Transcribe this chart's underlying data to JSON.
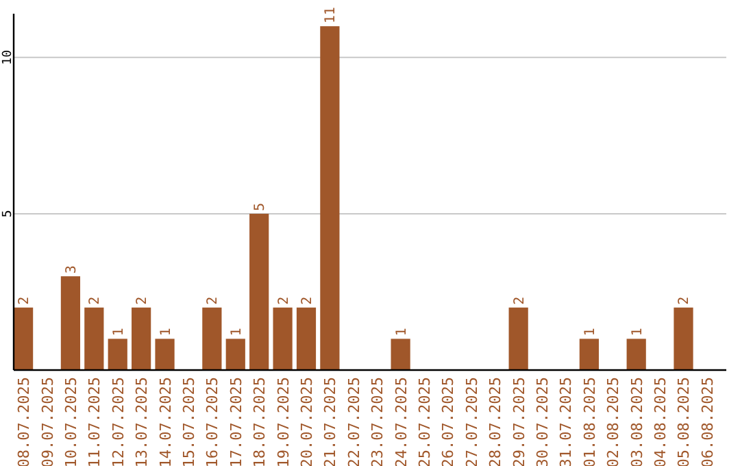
{
  "chart_data": {
    "type": "bar",
    "categories": [
      "08.07.2025",
      "09.07.2025",
      "10.07.2025",
      "11.07.2025",
      "12.07.2025",
      "13.07.2025",
      "14.07.2025",
      "15.07.2025",
      "16.07.2025",
      "17.07.2025",
      "18.07.2025",
      "19.07.2025",
      "20.07.2025",
      "21.07.2025",
      "22.07.2025",
      "23.07.2025",
      "24.07.2025",
      "25.07.2025",
      "26.07.2025",
      "27.07.2025",
      "28.07.2025",
      "29.07.2025",
      "30.07.2025",
      "31.07.2025",
      "01.08.2025",
      "02.08.2025",
      "03.08.2025",
      "04.08.2025",
      "05.08.2025",
      "06.08.2025"
    ],
    "values": [
      2,
      0,
      3,
      2,
      1,
      2,
      1,
      0,
      2,
      1,
      5,
      2,
      2,
      11,
      0,
      0,
      1,
      0,
      0,
      0,
      0,
      2,
      0,
      0,
      1,
      0,
      1,
      0,
      2,
      0
    ],
    "value_labels": [
      "2",
      null,
      "3",
      "2",
      "1",
      "2",
      "1",
      null,
      "2",
      "1",
      "5",
      "2",
      "2",
      "11",
      null,
      null,
      "1",
      null,
      null,
      null,
      null,
      "2",
      null,
      null,
      "1",
      null,
      "1",
      null,
      "2",
      null
    ],
    "color": "#a0572a",
    "ylim": [
      0,
      11.4
    ],
    "yticks": [
      5,
      10
    ],
    "grid": "y"
  }
}
